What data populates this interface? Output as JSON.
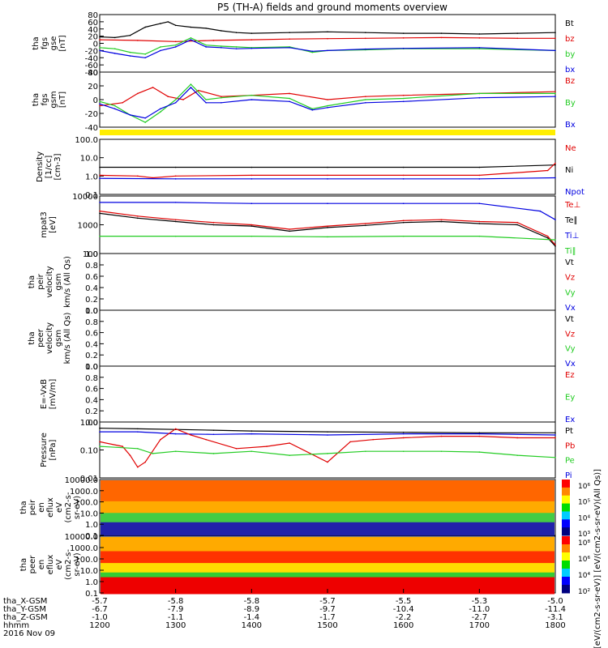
{
  "title": "P5 (TH-A) fields and ground moments overview",
  "colors": {
    "black": "#000000",
    "red": "#e00000",
    "green": "#22cc22",
    "blue": "#0000e0",
    "yellow": "#ffee00"
  },
  "chart_data": [
    {
      "type": "line",
      "ylabel_lines": [
        "tha",
        "fgs",
        "gse",
        "[nT]"
      ],
      "yticks": [
        "80",
        "60",
        "40",
        "20",
        "0",
        "-20",
        "-40",
        "-60",
        "-80"
      ],
      "ylim": [
        -80,
        80
      ],
      "legend": [
        {
          "label": "Bt",
          "color": "#000000"
        },
        {
          "label": "bz",
          "color": "#e00000"
        },
        {
          "label": "by",
          "color": "#22cc22"
        },
        {
          "label": "bx",
          "color": "#0000e0"
        }
      ],
      "series": [
        {
          "name": "Bt",
          "color": "#000000",
          "x": [
            1200,
            1220,
            1240,
            1260,
            1280,
            1290,
            1300,
            1320,
            1340,
            1360,
            1380,
            1400,
            1450,
            1500,
            1550,
            1600,
            1650,
            1700,
            1750,
            1800
          ],
          "y": [
            18,
            16,
            22,
            45,
            55,
            60,
            50,
            45,
            42,
            35,
            30,
            28,
            30,
            32,
            30,
            28,
            28,
            26,
            28,
            30
          ]
        },
        {
          "name": "bz",
          "color": "#e00000",
          "x": [
            1200,
            1250,
            1300,
            1350,
            1400,
            1450,
            1500,
            1550,
            1600,
            1650,
            1700,
            1750,
            1800
          ],
          "y": [
            10,
            8,
            5,
            8,
            10,
            12,
            13,
            14,
            15,
            16,
            15,
            14,
            14
          ]
        },
        {
          "name": "by",
          "color": "#22cc22",
          "x": [
            1200,
            1220,
            1240,
            1260,
            1280,
            1300,
            1320,
            1340,
            1360,
            1380,
            1400,
            1450,
            1480,
            1500,
            1550,
            1600,
            1700,
            1800
          ],
          "y": [
            -12,
            -15,
            -25,
            -30,
            -10,
            -5,
            15,
            -5,
            -8,
            -10,
            -12,
            -10,
            -25,
            -20,
            -18,
            -15,
            -15,
            -20
          ]
        },
        {
          "name": "bx",
          "color": "#0000e0",
          "x": [
            1200,
            1220,
            1240,
            1260,
            1280,
            1300,
            1320,
            1340,
            1360,
            1380,
            1400,
            1450,
            1480,
            1500,
            1550,
            1600,
            1700,
            1800
          ],
          "y": [
            -20,
            -28,
            -35,
            -40,
            -20,
            -10,
            10,
            -10,
            -12,
            -15,
            -14,
            -12,
            -22,
            -20,
            -16,
            -14,
            -12,
            -20
          ]
        }
      ]
    },
    {
      "type": "line",
      "ylabel_lines": [
        "tha",
        "fgs",
        "gsm",
        "[nT]"
      ],
      "yticks": [
        "40",
        "20",
        "0",
        "-20",
        "-40"
      ],
      "ylim": [
        -50,
        40
      ],
      "legend": [
        {
          "label": "Bz",
          "color": "#e00000"
        },
        {
          "label": "By",
          "color": "#22cc22"
        },
        {
          "label": "Bx",
          "color": "#0000e0"
        }
      ],
      "series": [
        {
          "name": "Bz",
          "color": "#e00000",
          "x": [
            1200,
            1230,
            1250,
            1270,
            1290,
            1310,
            1330,
            1360,
            1400,
            1450,
            1500,
            1550,
            1600,
            1700,
            1800
          ],
          "y": [
            -15,
            -10,
            5,
            15,
            0,
            -5,
            10,
            0,
            2,
            5,
            -5,
            0,
            2,
            5,
            8
          ]
        },
        {
          "name": "By",
          "color": "#22cc22",
          "x": [
            1200,
            1220,
            1240,
            1260,
            1280,
            1300,
            1320,
            1340,
            1360,
            1400,
            1450,
            1480,
            1500,
            1550,
            1600,
            1700,
            1800
          ],
          "y": [
            -8,
            -15,
            -30,
            -42,
            -25,
            -5,
            20,
            -5,
            -2,
            2,
            -3,
            -20,
            -15,
            -5,
            -3,
            5,
            5
          ]
        },
        {
          "name": "Bx",
          "color": "#0000e0",
          "x": [
            1200,
            1220,
            1240,
            1260,
            1280,
            1300,
            1320,
            1340,
            1360,
            1400,
            1450,
            1480,
            1500,
            1550,
            1600,
            1700,
            1800
          ],
          "y": [
            -12,
            -20,
            -30,
            -35,
            -20,
            -10,
            15,
            -10,
            -10,
            -5,
            -8,
            -22,
            -18,
            -10,
            -8,
            -2,
            0
          ]
        }
      ]
    },
    {
      "type": "line",
      "log": true,
      "ylabel_lines": [
        "Density",
        "[1/cc]",
        "[cm-3]"
      ],
      "yticks": [
        "100.0",
        "10.0",
        "1.0",
        "0.1"
      ],
      "ylim": [
        0.1,
        100
      ],
      "legend": [
        {
          "label": "Ne",
          "color": "#e00000"
        },
        {
          "label": "Ni",
          "color": "#000000"
        },
        {
          "label": "Npot",
          "color": "#0000e0"
        }
      ],
      "series": [
        {
          "name": "Ni",
          "color": "#000000",
          "x": [
            1200,
            1300,
            1400,
            1500,
            1600,
            1700,
            1800
          ],
          "y": [
            3,
            3,
            3,
            3,
            3,
            3,
            4
          ]
        },
        {
          "name": "Ne",
          "color": "#e00000",
          "x": [
            1200,
            1250,
            1270,
            1300,
            1400,
            1500,
            1600,
            1700,
            1790,
            1800
          ],
          "y": [
            1.1,
            1.0,
            0.8,
            1.0,
            1.1,
            1.1,
            1.1,
            1.1,
            2,
            5
          ]
        },
        {
          "name": "Npot",
          "color": "#0000e0",
          "x": [
            1200,
            1300,
            1400,
            1500,
            1600,
            1700,
            1800
          ],
          "y": [
            0.75,
            0.7,
            0.7,
            0.7,
            0.7,
            0.7,
            0.8
          ]
        }
      ]
    },
    {
      "type": "line",
      "log": true,
      "ylabel_lines": [
        "mpat3",
        "[eV]"
      ],
      "yticks": [
        "10000",
        "1000",
        "100"
      ],
      "ylim": [
        100,
        10000
      ],
      "legend": [
        {
          "label": "Te⊥",
          "color": "#e00000"
        },
        {
          "label": "Te∥",
          "color": "#000000"
        },
        {
          "label": "Ti⊥",
          "color": "#0000e0"
        },
        {
          "label": "Ti∥",
          "color": "#22cc22"
        }
      ],
      "series": [
        {
          "name": "Ti⊥",
          "color": "#0000e0",
          "x": [
            1200,
            1300,
            1400,
            1500,
            1600,
            1700,
            1780,
            1800
          ],
          "y": [
            6000,
            6000,
            5500,
            5500,
            5500,
            5500,
            3000,
            1500
          ]
        },
        {
          "name": "Te⊥",
          "color": "#e00000",
          "x": [
            1200,
            1250,
            1300,
            1350,
            1400,
            1450,
            1500,
            1550,
            1600,
            1650,
            1700,
            1750,
            1790,
            1800
          ],
          "y": [
            3000,
            2000,
            1500,
            1200,
            1000,
            700,
            900,
            1100,
            1400,
            1500,
            1300,
            1200,
            400,
            200
          ]
        },
        {
          "name": "Te∥",
          "color": "#000000",
          "x": [
            1200,
            1250,
            1300,
            1350,
            1400,
            1450,
            1500,
            1550,
            1600,
            1650,
            1700,
            1750,
            1790,
            1800
          ],
          "y": [
            2500,
            1700,
            1300,
            1000,
            900,
            600,
            800,
            950,
            1200,
            1300,
            1100,
            1000,
            350,
            180
          ]
        },
        {
          "name": "Ti∥",
          "color": "#22cc22",
          "x": [
            1200,
            1300,
            1400,
            1500,
            1600,
            1700,
            1800
          ],
          "y": [
            400,
            400,
            400,
            380,
            400,
            400,
            300
          ]
        }
      ]
    },
    {
      "type": "line",
      "ylabel_lines": [
        "tha",
        "peir",
        "velocity",
        "gsm",
        "km/s (All Qs)"
      ],
      "yticks": [
        "1.0",
        "0.8",
        "0.6",
        "0.4",
        "0.2",
        "0.0"
      ],
      "ylim": [
        0,
        1
      ],
      "legend": [
        {
          "label": "Vt",
          "color": "#000000"
        },
        {
          "label": "Vz",
          "color": "#e00000"
        },
        {
          "label": "Vy",
          "color": "#22cc22"
        },
        {
          "label": "Vx",
          "color": "#0000e0"
        }
      ],
      "series": []
    },
    {
      "type": "line",
      "ylabel_lines": [
        "tha",
        "peer",
        "velocity",
        "gsm",
        "km/s (All Qs)"
      ],
      "yticks": [
        "1.0",
        "0.8",
        "0.6",
        "0.4",
        "0.2",
        "0.0"
      ],
      "ylim": [
        0,
        1
      ],
      "legend": [
        {
          "label": "Vt",
          "color": "#000000"
        },
        {
          "label": "Vz",
          "color": "#e00000"
        },
        {
          "label": "Vy",
          "color": "#22cc22"
        },
        {
          "label": "Vx",
          "color": "#0000e0"
        }
      ],
      "series": []
    },
    {
      "type": "line",
      "ylabel_lines": [
        "E=-VxB",
        "[mV/m]"
      ],
      "yticks": [
        "1.0",
        "0.8",
        "0.6",
        "0.4",
        "0.2",
        "0.0"
      ],
      "ylim": [
        0,
        1
      ],
      "legend": [
        {
          "label": "Ez",
          "color": "#e00000"
        },
        {
          "label": "Ey",
          "color": "#22cc22"
        },
        {
          "label": "Ex",
          "color": "#0000e0"
        }
      ],
      "series": []
    },
    {
      "type": "line",
      "log": true,
      "ylabel_lines": [
        "Pressure",
        "[nPa]"
      ],
      "yticks": [
        "1.00",
        "0.10",
        "0.01"
      ],
      "ylim": [
        0.01,
        3
      ],
      "legend": [
        {
          "label": "Pt",
          "color": "#000000"
        },
        {
          "label": "Pb",
          "color": "#e00000"
        },
        {
          "label": "Pe",
          "color": "#22cc22"
        },
        {
          "label": "Pi",
          "color": "#0000e0"
        }
      ],
      "series": [
        {
          "name": "Pt",
          "color": "#000000",
          "x": [
            1200,
            1250,
            1300,
            1350,
            1400,
            1500,
            1600,
            1700,
            1800
          ],
          "y": [
            1.6,
            1.5,
            1.4,
            1.3,
            1.2,
            1.1,
            1.05,
            1.0,
            1.0
          ]
        },
        {
          "name": "Pi",
          "color": "#0000e0",
          "x": [
            1200,
            1250,
            1300,
            1350,
            1400,
            1500,
            1600,
            1700,
            1800
          ],
          "y": [
            1.1,
            1.1,
            0.9,
            0.85,
            0.9,
            0.8,
            0.9,
            0.9,
            0.8
          ]
        },
        {
          "name": "Pb",
          "color": "#e00000",
          "x": [
            1200,
            1230,
            1240,
            1250,
            1260,
            1280,
            1300,
            1320,
            1340,
            1380,
            1420,
            1450,
            1500,
            1530,
            1560,
            1600,
            1650,
            1700,
            1750,
            1800
          ],
          "y": [
            0.4,
            0.25,
            0.1,
            0.03,
            0.05,
            0.5,
            1.5,
            0.8,
            0.5,
            0.2,
            0.25,
            0.35,
            0.05,
            0.4,
            0.5,
            0.6,
            0.7,
            0.7,
            0.6,
            0.6
          ]
        },
        {
          "name": "Pe",
          "color": "#22cc22",
          "x": [
            1200,
            1250,
            1270,
            1300,
            1350,
            1400,
            1450,
            1500,
            1550,
            1600,
            1650,
            1700,
            1750,
            1800
          ],
          "y": [
            0.25,
            0.2,
            0.12,
            0.15,
            0.12,
            0.15,
            0.1,
            0.12,
            0.15,
            0.15,
            0.15,
            0.14,
            0.1,
            0.08
          ]
        }
      ]
    },
    {
      "type": "heatmap",
      "ylabel_lines": [
        "tha",
        "peir",
        "en",
        "eflux",
        "eV",
        "(cm2-s-",
        "sr-eV)"
      ],
      "yticks": [
        "10000.0",
        "1000.0",
        "100.0",
        "10.0",
        "1.0",
        "0.1"
      ],
      "colorbar_ticks": [
        "10⁶",
        "10⁵",
        "10⁴",
        "10³"
      ]
    },
    {
      "type": "heatmap",
      "ylabel_lines": [
        "tha",
        "peer",
        "en",
        "eflux",
        "eV",
        "(cm2-s-",
        "sr-eV)"
      ],
      "yticks": [
        "10000.0",
        "1000.0",
        "100.0",
        "10.0",
        "1.0",
        "0.1"
      ],
      "colorbar_ticks": [
        "10⁸",
        "10⁶",
        "10⁴",
        "10²"
      ]
    }
  ],
  "colorbar_label": "[eV/(cm2-s-sr-eV)] [eV/(cm2-s-sr-eV)(All Qs)]",
  "xaxis": {
    "rows": [
      {
        "label": "tha_X-GSM",
        "values": [
          "-5.7",
          "-5.8",
          "-5.8",
          "-5.7",
          "-5.5",
          "-5.3",
          "-5.0"
        ]
      },
      {
        "label": "tha_Y-GSM",
        "values": [
          "-6.7",
          "-7.9",
          "-8.9",
          "-9.7",
          "-10.4",
          "-11.0",
          "-11.4"
        ]
      },
      {
        "label": "tha_Z-GSM",
        "values": [
          "-1.0",
          "-1.1",
          "-1.4",
          "-1.7",
          "-2.2",
          "-2.7",
          "-3.1"
        ]
      },
      {
        "label": "hhmm",
        "values": [
          "1200",
          "1300",
          "1400",
          "1500",
          "1600",
          "1700",
          "1800"
        ]
      }
    ],
    "date": "2016 Nov 09"
  }
}
